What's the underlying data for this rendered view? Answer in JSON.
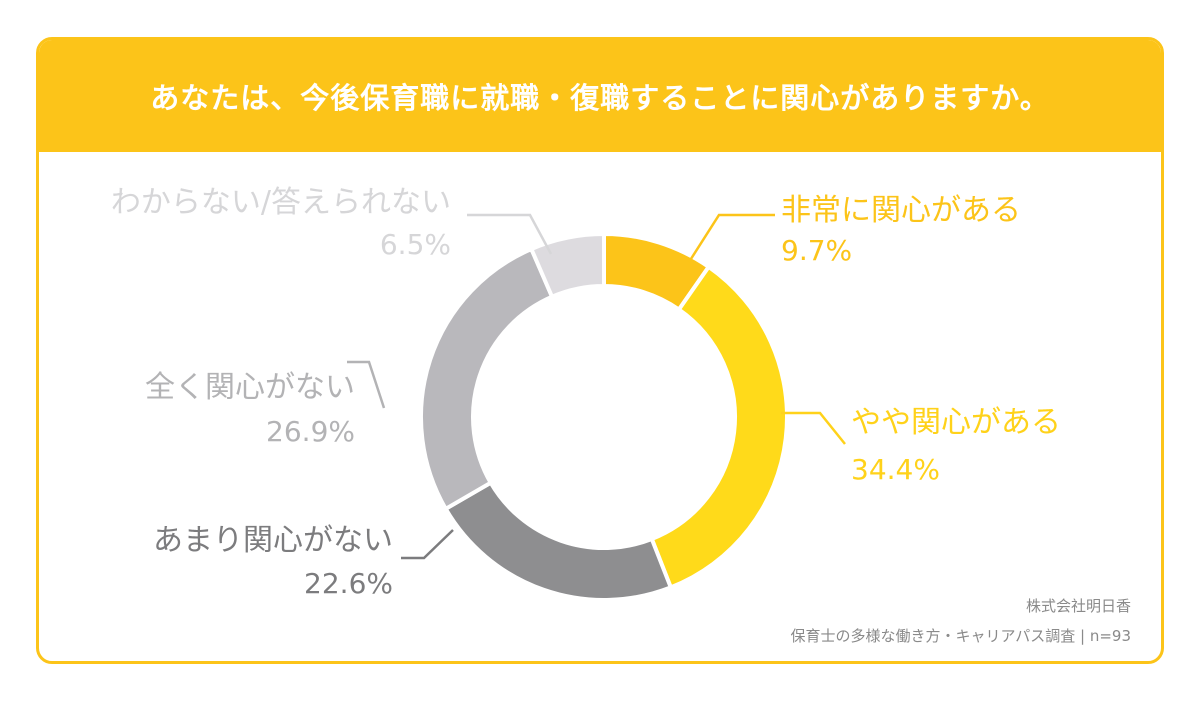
{
  "title": "あなたは、今後保育職に就職・復職することに関心がありますか。",
  "source": {
    "company": "株式会社明日香",
    "survey": "保育士の多様な働き方・キャリアパス調査 | n=93"
  },
  "chart_data": {
    "type": "pie",
    "title": "あなたは、今後保育職に就職・復職することに関心がありますか。",
    "slices": [
      {
        "label": "非常に関心がある",
        "value": 9.7,
        "display": "9.7%",
        "color": "#fcc419",
        "text_color": "#fcc419"
      },
      {
        "label": "やや関心がある",
        "value": 34.4,
        "display": "34.4%",
        "color": "#ffda1a",
        "text_color": "#ffd21a"
      },
      {
        "label": "あまり関心がない",
        "value": 22.6,
        "display": "22.6%",
        "color": "#8e8e90",
        "text_color": "#7c7c7e"
      },
      {
        "label": "全く関心がない",
        "value": 26.9,
        "display": "26.9%",
        "color": "#b9b8bc",
        "text_color": "#b3b3b5"
      },
      {
        "label": "わからない/答えられない",
        "value": 6.5,
        "display": "6.5%",
        "color": "#dddbdf",
        "text_color": "#d6d6d8"
      }
    ]
  }
}
